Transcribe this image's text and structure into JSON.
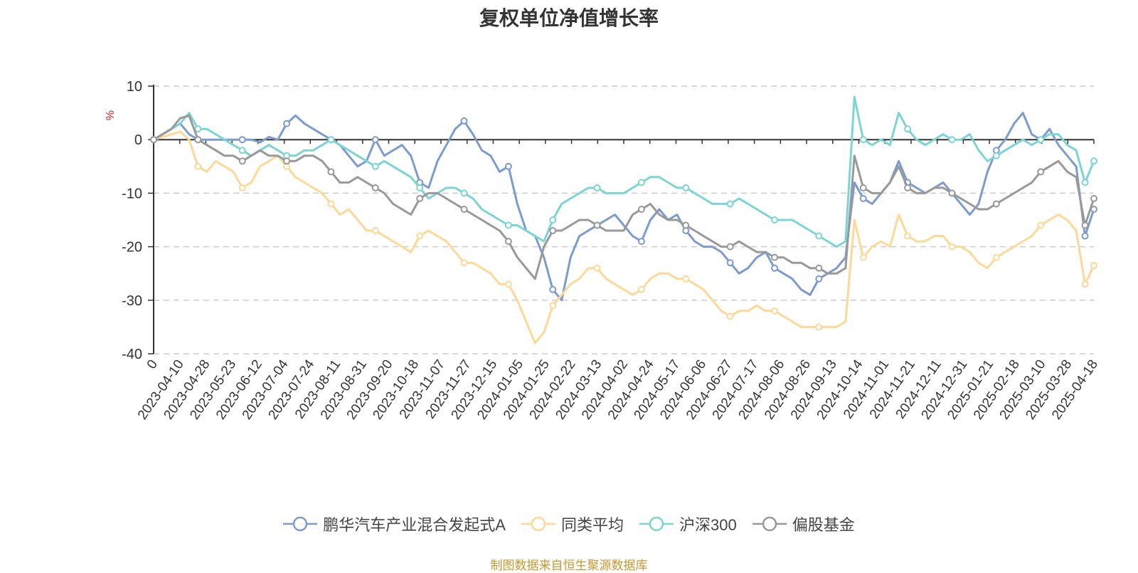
{
  "chart_data": {
    "type": "line",
    "title": "复权单位净值增长率",
    "ylabel": "%",
    "ylim": [
      -40,
      10
    ],
    "yticks": [
      10,
      0,
      -10,
      -20,
      -30,
      -40
    ],
    "grid": true,
    "legend_position": "bottom",
    "x_ticks": [
      "0",
      "2023-04-10",
      "2023-04-28",
      "2023-05-23",
      "2023-06-12",
      "2023-07-04",
      "2023-07-24",
      "2023-08-11",
      "2023-08-31",
      "2023-09-20",
      "2023-10-18",
      "2023-11-07",
      "2023-11-27",
      "2023-12-15",
      "2024-01-05",
      "2024-01-25",
      "2024-02-22",
      "2024-03-13",
      "2024-04-02",
      "2024-04-24",
      "2024-05-17",
      "2024-06-06",
      "2024-06-27",
      "2024-07-17",
      "2024-08-06",
      "2024-08-26",
      "2024-09-13",
      "2024-10-14",
      "2024-11-01",
      "2024-11-21",
      "2024-12-11",
      "2024-12-31",
      "2025-01-21",
      "2025-02-18",
      "2025-03-10",
      "2025-03-28",
      "2025-04-18"
    ],
    "series": [
      {
        "name": "鹏华汽车产业混合发起式A",
        "color": "#7b9bd1",
        "values": [
          0,
          1,
          2,
          3,
          1,
          0,
          0,
          0,
          0,
          0,
          0,
          0,
          -0.5,
          0.5,
          0,
          3,
          4.5,
          3,
          2,
          1,
          0,
          -1,
          -3,
          -5,
          -4,
          0,
          -3,
          -2,
          -1,
          -3,
          -8,
          -9,
          -4,
          -1,
          2,
          3.5,
          1,
          -2,
          -3,
          -6,
          -5,
          -12,
          -17,
          -18,
          -22,
          -28,
          -30,
          -22,
          -18,
          -17,
          -16,
          -15,
          -14,
          -16,
          -18,
          -19,
          -15,
          -13,
          -15,
          -14,
          -17,
          -19,
          -20,
          -20,
          -21,
          -23,
          -25,
          -24,
          -22,
          -21,
          -24,
          -25,
          -26,
          -28,
          -29,
          -26,
          -25,
          -24,
          -22,
          -8,
          -11,
          -12,
          -10,
          -8,
          -4,
          -8,
          -9,
          -10,
          -9,
          -8,
          -10,
          -12,
          -14,
          -12,
          -6,
          -2,
          0,
          3,
          5,
          1,
          0,
          2,
          -1,
          -3,
          -5,
          -18,
          -13
        ]
      },
      {
        "name": "同类平均",
        "color": "#fdd897",
        "values": [
          0,
          0.5,
          1,
          1.5,
          0,
          -5,
          -6,
          -4,
          -5,
          -6,
          -9,
          -8,
          -5,
          -4,
          -3,
          -5,
          -7,
          -8,
          -9,
          -10,
          -12,
          -14,
          -13,
          -15,
          -17,
          -17,
          -18,
          -19,
          -20,
          -21,
          -18,
          -17,
          -18,
          -19,
          -21,
          -23,
          -23,
          -24,
          -25,
          -27,
          -27,
          -30,
          -34,
          -38,
          -36,
          -31,
          -29,
          -27,
          -26,
          -24,
          -24,
          -26,
          -27,
          -28,
          -29,
          -28,
          -26,
          -25,
          -25,
          -26,
          -26,
          -27,
          -28,
          -30,
          -32,
          -33,
          -32,
          -32,
          -31,
          -32,
          -32,
          -33,
          -34,
          -35,
          -35,
          -35,
          -35,
          -35,
          -34,
          -15,
          -22,
          -20,
          -19,
          -20,
          -14,
          -18,
          -19,
          -19,
          -18,
          -18,
          -20,
          -20,
          -21,
          -23,
          -24,
          -22,
          -21,
          -20,
          -19,
          -18,
          -16,
          -15,
          -14,
          -15,
          -17,
          -27,
          -23.5
        ]
      },
      {
        "name": "沪深300",
        "color": "#7dd4d4",
        "values": [
          0,
          1,
          2,
          3,
          5,
          2,
          2,
          1,
          0,
          -1,
          -2,
          -3,
          -2,
          -1,
          -2,
          -3,
          -3,
          -2,
          -2,
          -1,
          0,
          -1,
          -2,
          -3,
          -4,
          -5,
          -4,
          -5,
          -6,
          -7,
          -9,
          -11,
          -10,
          -9,
          -9,
          -10,
          -11,
          -13,
          -14,
          -15,
          -16,
          -16,
          -17,
          -18,
          -19,
          -15,
          -12,
          -11,
          -10,
          -9,
          -9,
          -10,
          -10,
          -10,
          -9,
          -8,
          -7,
          -7,
          -8,
          -9,
          -9,
          -10,
          -11,
          -12,
          -12,
          -12,
          -11,
          -12,
          -13,
          -14,
          -15,
          -15,
          -15,
          -16,
          -17,
          -18,
          -19,
          -20,
          -19,
          8,
          0,
          -1,
          0,
          -1,
          5,
          2,
          0,
          -1,
          0,
          1,
          0,
          0,
          1,
          -2,
          -4,
          -3,
          -2,
          -1,
          0,
          -1,
          0,
          1,
          1,
          -1,
          -2,
          -8,
          -4
        ]
      },
      {
        "name": "偏股基金",
        "color": "#999999",
        "values": [
          0,
          1,
          2,
          4,
          4.5,
          0,
          -1,
          -2,
          -3,
          -3,
          -4,
          -3,
          -2,
          -3,
          -3,
          -4,
          -4,
          -3,
          -3,
          -4,
          -6,
          -8,
          -8,
          -7,
          -8,
          -9,
          -10,
          -12,
          -13,
          -14,
          -11,
          -10,
          -10,
          -11,
          -12,
          -13,
          -14,
          -15,
          -16,
          -17,
          -19,
          -22,
          -24,
          -26,
          -20,
          -17,
          -17,
          -16,
          -15,
          -15,
          -16,
          -17,
          -17,
          -17,
          -14,
          -13,
          -12,
          -14,
          -15,
          -15,
          -16,
          -17,
          -18,
          -19,
          -20,
          -20,
          -19,
          -20,
          -21,
          -21,
          -22,
          -22,
          -23,
          -23,
          -24,
          -24,
          -25,
          -25,
          -24,
          -3,
          -9,
          -10,
          -10,
          -8,
          -5,
          -9,
          -10,
          -10,
          -9,
          -9,
          -10,
          -11,
          -12,
          -13,
          -13,
          -12,
          -11,
          -10,
          -9,
          -8,
          -6,
          -5,
          -4,
          -6,
          -7,
          -16,
          -11
        ]
      }
    ]
  },
  "source_note": {
    "text": "制图数据来自恒生聚源数据库",
    "color": "#c8972f"
  }
}
